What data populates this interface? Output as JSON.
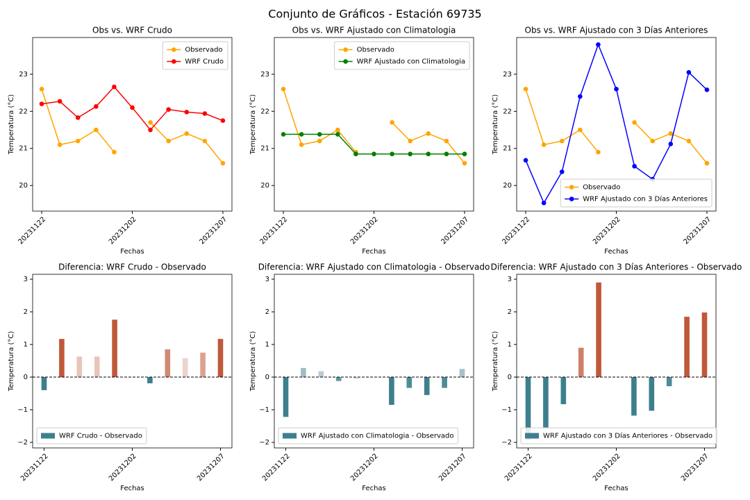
{
  "title": "Conjunto de Gráficos - Estación 69735",
  "chart_data": [
    {
      "type": "line",
      "title": "Obs vs. WRF Crudo",
      "xlabel": "Fechas",
      "ylabel": "Temperatura (°C)",
      "categories": [
        "20231122",
        null,
        null,
        null,
        null,
        "20231202",
        null,
        null,
        null,
        null,
        "20231207"
      ],
      "series": [
        {
          "name": "Observado",
          "color": "#ffa500",
          "values": [
            22.6,
            21.1,
            21.2,
            21.5,
            20.9,
            null,
            21.7,
            21.2,
            21.4,
            21.2,
            20.6
          ]
        },
        {
          "name": "WRF Crudo",
          "color": "#ff0000",
          "values": [
            22.2,
            22.27,
            21.83,
            22.13,
            22.66,
            22.1,
            21.5,
            22.05,
            21.98,
            21.94,
            21.75
          ]
        }
      ],
      "xlim": [
        -0.5,
        10.5
      ],
      "ylim": [
        19.31,
        23.99
      ],
      "yticks": [
        20,
        21,
        22,
        23
      ],
      "legend": "upper right"
    },
    {
      "type": "line",
      "title": "Obs vs. WRF Ajustado con Climatologia",
      "xlabel": "Fechas",
      "ylabel": "Temperatura (°C)",
      "categories": [
        "20231122",
        null,
        null,
        null,
        null,
        "20231202",
        null,
        null,
        null,
        null,
        "20231207"
      ],
      "series": [
        {
          "name": "Observado",
          "color": "#ffa500",
          "values": [
            22.6,
            21.1,
            21.2,
            21.5,
            20.9,
            null,
            21.7,
            21.2,
            21.4,
            21.2,
            20.6
          ]
        },
        {
          "name": "WRF Ajustado con Climatologia",
          "color": "#008000",
          "values": [
            21.38,
            21.38,
            21.38,
            21.38,
            20.85,
            20.85,
            20.85,
            20.85,
            20.85,
            20.85,
            20.85
          ]
        }
      ],
      "xlim": [
        -0.5,
        10.5
      ],
      "ylim": [
        19.31,
        23.99
      ],
      "yticks": [
        20,
        21,
        22,
        23
      ],
      "legend": "upper right"
    },
    {
      "type": "line",
      "title": "Obs vs. WRF Ajustado con 3 Días Anteriores",
      "xlabel": "Fechas",
      "ylabel": "Temperatura (°C)",
      "categories": [
        "20231122",
        null,
        null,
        null,
        null,
        "20231202",
        null,
        null,
        null,
        null,
        "20231207"
      ],
      "series": [
        {
          "name": "Observado",
          "color": "#ffa500",
          "values": [
            22.6,
            21.1,
            21.2,
            21.5,
            20.9,
            null,
            21.7,
            21.2,
            21.4,
            21.2,
            20.6
          ]
        },
        {
          "name": "WRF Ajustado con 3 Días Anteriores",
          "color": "#0000ff",
          "values": [
            20.68,
            19.53,
            20.37,
            22.4,
            23.8,
            22.6,
            20.52,
            20.17,
            21.12,
            23.05,
            22.58
          ]
        }
      ],
      "xlim": [
        -0.5,
        10.5
      ],
      "ylim": [
        19.31,
        23.99
      ],
      "yticks": [
        20,
        21,
        22,
        23
      ],
      "legend": "lower right"
    },
    {
      "type": "bar",
      "title": "Diferencia: WRF Crudo - Observado",
      "xlabel": "Fechas",
      "ylabel": "Temperatura (°C)",
      "categories": [
        "20231122",
        null,
        null,
        null,
        null,
        "20231202",
        null,
        null,
        null,
        null,
        "20231207"
      ],
      "series": [
        {
          "name": "WRF Crudo - Observado",
          "color": "#3e7f8e",
          "values": [
            -0.4,
            1.17,
            0.63,
            0.63,
            1.76,
            null,
            -0.19,
            0.85,
            0.58,
            0.75,
            1.17
          ],
          "colors": [
            "#3e7f8e",
            "#c0583a",
            "#e8c5bb",
            "#e8c5bb",
            "#c0583a",
            "#ffffff",
            "#3e7f8e",
            "#d08a74",
            "#ecd3cb",
            "#dca28f",
            "#c0583a"
          ]
        }
      ],
      "xlim": [
        -0.65,
        10.65
      ],
      "ylim": [
        -2.17,
        3.15
      ],
      "zero_line": true,
      "yticks": [
        {
          "value": -2,
          "label": "−2"
        },
        {
          "value": -1,
          "label": "−1"
        },
        0,
        1,
        2,
        3
      ],
      "legend": "lower left"
    },
    {
      "type": "bar",
      "title": "Diferencia: WRF Ajustado con Climatologia - Observado",
      "xlabel": "Fechas",
      "ylabel": "Temperatura (°C)",
      "categories": [
        "20231122",
        null,
        null,
        null,
        null,
        "20231202",
        null,
        null,
        null,
        null,
        "20231207"
      ],
      "series": [
        {
          "name": "WRF Ajustado con Climatologia - Observado",
          "color": "#3e7f8e",
          "values": [
            -1.22,
            0.28,
            0.18,
            -0.12,
            -0.05,
            null,
            -0.85,
            -0.33,
            -0.55,
            -0.33,
            0.25
          ],
          "colors": [
            "#3e7f8e",
            "#9fbcc4",
            "#b7ccd2",
            "#5f95a2",
            "#c9d9dd",
            "#ffffff",
            "#3e7f8e",
            "#4f8a97",
            "#3e7f8e",
            "#4f8a97",
            "#a5c0c7"
          ]
        }
      ],
      "xlim": [
        -0.65,
        10.65
      ],
      "ylim": [
        -2.17,
        3.15
      ],
      "zero_line": true,
      "yticks": [
        {
          "value": -2,
          "label": "−2"
        },
        {
          "value": -1,
          "label": "−1"
        },
        0,
        1,
        2,
        3
      ],
      "legend": "lower left"
    },
    {
      "type": "bar",
      "title": "Diferencia: WRF Ajustado con 3 Días Anteriores - Observado",
      "xlabel": "Fechas",
      "ylabel": "Temperatura (°C)",
      "categories": [
        "20231122",
        null,
        null,
        null,
        null,
        "20231202",
        null,
        null,
        null,
        null,
        "20231207"
      ],
      "series": [
        {
          "name": "WRF Ajustado con 3 Días Anteriores - Observado",
          "color": "#3e7f8e",
          "values": [
            -1.92,
            -1.57,
            -0.83,
            0.9,
            2.9,
            null,
            -1.18,
            -1.03,
            -0.28,
            1.85,
            1.98
          ],
          "colors": [
            "#3e7f8e",
            "#3e7f8e",
            "#3e7f8e",
            "#cf8068",
            "#c0583a",
            "#ffffff",
            "#3e7f8e",
            "#3e7f8e",
            "#4f8a97",
            "#c0583a",
            "#c0583a"
          ]
        }
      ],
      "xlim": [
        -0.65,
        10.65
      ],
      "ylim": [
        -2.17,
        3.15
      ],
      "zero_line": true,
      "yticks": [
        {
          "value": -2,
          "label": "−2"
        },
        {
          "value": -1,
          "label": "−1"
        },
        0,
        1,
        2,
        3
      ],
      "legend": "lower left"
    }
  ]
}
